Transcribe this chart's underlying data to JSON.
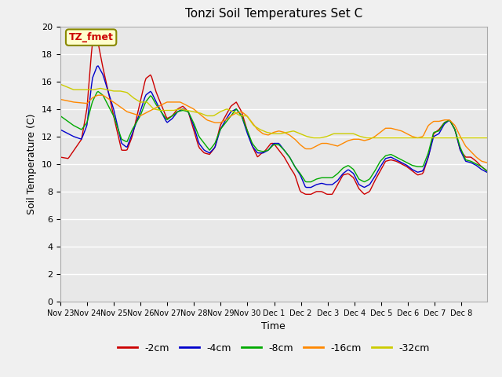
{
  "title": "Tonzi Soil Temperatures Set C",
  "xlabel": "Time",
  "ylabel": "Soil Temperature (C)",
  "ylim": [
    0,
    20
  ],
  "yticks": [
    0,
    2,
    4,
    6,
    8,
    10,
    12,
    14,
    16,
    18,
    20
  ],
  "x_labels": [
    "Nov 23",
    "Nov 24",
    "Nov 25",
    "Nov 26",
    "Nov 27",
    "Nov 28",
    "Nov 29",
    "Nov 30",
    "Dec 1",
    "Dec 2",
    "Dec 3",
    "Dec 4",
    "Dec 5",
    "Dec 6",
    "Dec 7",
    "Dec 8"
  ],
  "series_labels": [
    "-2cm",
    "-4cm",
    "-8cm",
    "-16cm",
    "-32cm"
  ],
  "series_colors": [
    "#cc0000",
    "#0000cc",
    "#00aa00",
    "#ff8800",
    "#cccc00"
  ],
  "annotation_text": "TZ_fmet",
  "annotation_box_color": "#ffffcc",
  "annotation_text_color": "#cc0000",
  "background_color": "#e8e8e8",
  "grid_color": "#ffffff",
  "n_points": 384
}
